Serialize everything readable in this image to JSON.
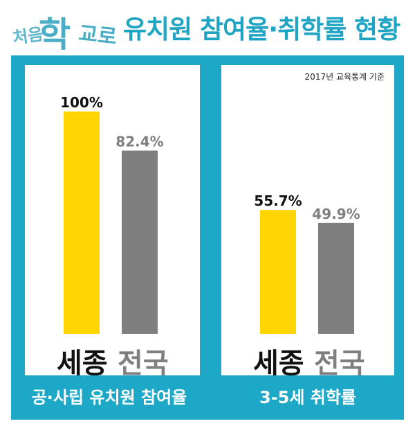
{
  "header": {
    "logo": {
      "w1": "처음",
      "w2": "학",
      "w3": "교로"
    },
    "title": "유치원 참여율·취학률 현황"
  },
  "note": "2017년 교육통계 기준",
  "colors": {
    "frame": "#1ca8c6",
    "sejong": "#ffd500",
    "national": "#7f7f7f",
    "title": "#1fa4c3"
  },
  "chart_data": [
    {
      "type": "bar",
      "caption": "공·사립 유치원 참여율",
      "categories": [
        "세종",
        "전국"
      ],
      "values": [
        100,
        82.4
      ],
      "labels": [
        "100%",
        "82.4%"
      ],
      "ylim": [
        0,
        100
      ]
    },
    {
      "type": "bar",
      "caption": "3-5세 취학률",
      "categories": [
        "세종",
        "전국"
      ],
      "values": [
        55.7,
        49.9
      ],
      "labels": [
        "55.7%",
        "49.9%"
      ],
      "ylim": [
        0,
        100
      ]
    }
  ]
}
